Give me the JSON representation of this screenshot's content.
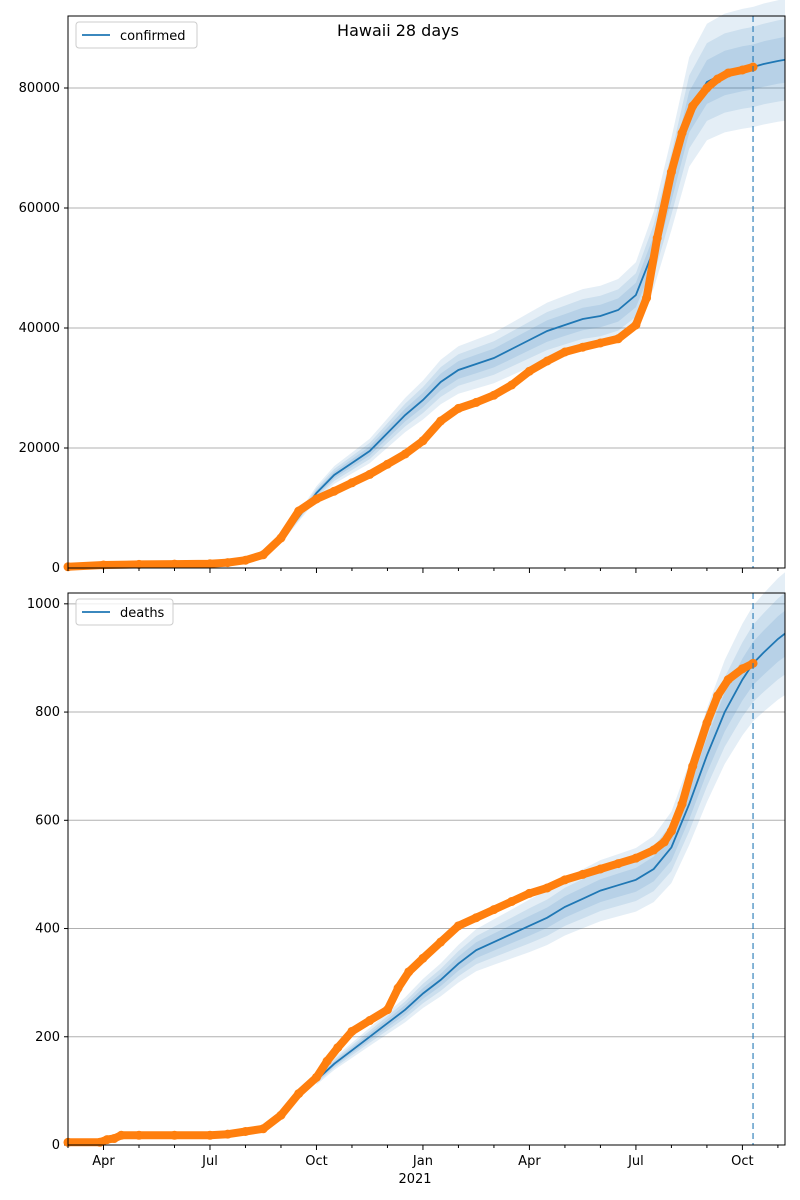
{
  "figure": {
    "title": "Hawaii 28 days",
    "year_label": "2021"
  },
  "colors": {
    "model": "#1f77b4",
    "observed": "#ff7f0e",
    "grid": "#b0b0b0",
    "axis": "#000000"
  },
  "chart_data": [
    {
      "type": "line",
      "legend": [
        "confirmed"
      ],
      "legend_position": "top-left",
      "grid": "horizontal",
      "x_ticks": [
        "Apr",
        "Jul",
        "Oct",
        "Jan",
        "Apr",
        "Jul",
        "Oct"
      ],
      "y_ticks": [
        "0",
        "20000",
        "40000",
        "60000",
        "80000"
      ],
      "ylim": [
        0,
        92000
      ],
      "xlim_months": [
        0.0,
        20.2
      ],
      "forecast_start_month": 19.3,
      "series": [
        {
          "name": "confirmed",
          "kind": "model-median",
          "x_months": [
            4.5,
            5.0,
            5.5,
            6.0,
            6.5,
            7.0,
            7.5,
            8.0,
            8.5,
            9.0,
            9.5,
            10.0,
            10.5,
            11.0,
            11.5,
            12.0,
            12.5,
            13.0,
            13.5,
            14.0,
            14.5,
            15.0,
            15.5,
            16.0,
            16.5,
            17.0,
            17.5,
            18.0,
            18.5,
            19.0,
            19.3,
            19.6,
            20.0,
            20.2
          ],
          "values": [
            1000,
            1500,
            2500,
            4500,
            8500,
            12500,
            15500,
            17500,
            19500,
            22500,
            25500,
            28000,
            31000,
            33000,
            34000,
            35000,
            36500,
            38000,
            39500,
            40500,
            41500,
            42000,
            43000,
            45500,
            53000,
            64000,
            76000,
            81000,
            82500,
            83200,
            83500,
            84000,
            84500,
            84700
          ]
        },
        {
          "name": "observed confirmed",
          "kind": "observed",
          "x_months": [
            0.0,
            1.0,
            2.0,
            3.0,
            4.0,
            4.5,
            5.0,
            5.5,
            6.0,
            6.5,
            7.0,
            7.5,
            8.0,
            8.5,
            9.0,
            9.5,
            10.0,
            10.5,
            11.0,
            11.5,
            12.0,
            12.5,
            13.0,
            13.5,
            14.0,
            14.5,
            15.0,
            15.5,
            16.0,
            16.3,
            16.6,
            17.0,
            17.3,
            17.6,
            18.0,
            18.3,
            18.6,
            19.0,
            19.3
          ],
          "values": [
            200,
            500,
            600,
            650,
            700,
            900,
            1300,
            2200,
            5000,
            9500,
            11500,
            12800,
            14200,
            15600,
            17300,
            19000,
            21200,
            24500,
            26600,
            27600,
            28800,
            30500,
            32800,
            34500,
            36000,
            36800,
            37500,
            38200,
            40500,
            45000,
            55000,
            66000,
            72500,
            77000,
            80000,
            81500,
            82500,
            83000,
            83500
          ]
        }
      ]
    },
    {
      "type": "line",
      "legend": [
        "deaths"
      ],
      "legend_position": "top-left",
      "grid": "horizontal",
      "x_ticks": [
        "Apr",
        "Jul",
        "Oct",
        "Jan",
        "Apr",
        "Jul",
        "Oct"
      ],
      "y_ticks": [
        "0",
        "200",
        "400",
        "600",
        "800",
        "1000"
      ],
      "ylim": [
        0,
        1020
      ],
      "xlim_months": [
        0.0,
        20.2
      ],
      "forecast_start_month": 19.3,
      "series": [
        {
          "name": "deaths",
          "kind": "model-median",
          "x_months": [
            7.0,
            7.5,
            8.0,
            8.5,
            9.0,
            9.5,
            10.0,
            10.5,
            11.0,
            11.5,
            12.0,
            12.5,
            13.0,
            13.5,
            14.0,
            14.5,
            15.0,
            15.5,
            16.0,
            16.5,
            17.0,
            17.5,
            18.0,
            18.5,
            19.0,
            19.3,
            19.6,
            20.0,
            20.2
          ],
          "values": [
            120,
            150,
            175,
            200,
            225,
            250,
            280,
            305,
            335,
            360,
            375,
            390,
            405,
            420,
            440,
            455,
            470,
            480,
            490,
            510,
            550,
            630,
            720,
            800,
            860,
            890,
            910,
            935,
            945
          ]
        },
        {
          "name": "observed deaths",
          "kind": "observed",
          "x_months": [
            0.0,
            0.9,
            1.1,
            1.3,
            1.5,
            2.0,
            3.0,
            4.0,
            4.5,
            5.0,
            5.5,
            6.0,
            6.5,
            7.0,
            7.3,
            7.6,
            8.0,
            8.5,
            9.0,
            9.3,
            9.6,
            10.0,
            10.5,
            11.0,
            11.5,
            12.0,
            12.5,
            13.0,
            13.5,
            14.0,
            14.5,
            15.0,
            15.5,
            16.0,
            16.5,
            16.8,
            17.0,
            17.3,
            17.6,
            18.0,
            18.3,
            18.6,
            19.0,
            19.3
          ],
          "values": [
            5,
            5,
            10,
            12,
            18,
            18,
            18,
            18,
            20,
            25,
            30,
            55,
            95,
            125,
            155,
            180,
            210,
            230,
            250,
            290,
            320,
            345,
            375,
            405,
            420,
            435,
            450,
            465,
            475,
            490,
            500,
            510,
            520,
            530,
            545,
            560,
            580,
            630,
            700,
            780,
            830,
            860,
            880,
            890
          ]
        }
      ]
    }
  ]
}
